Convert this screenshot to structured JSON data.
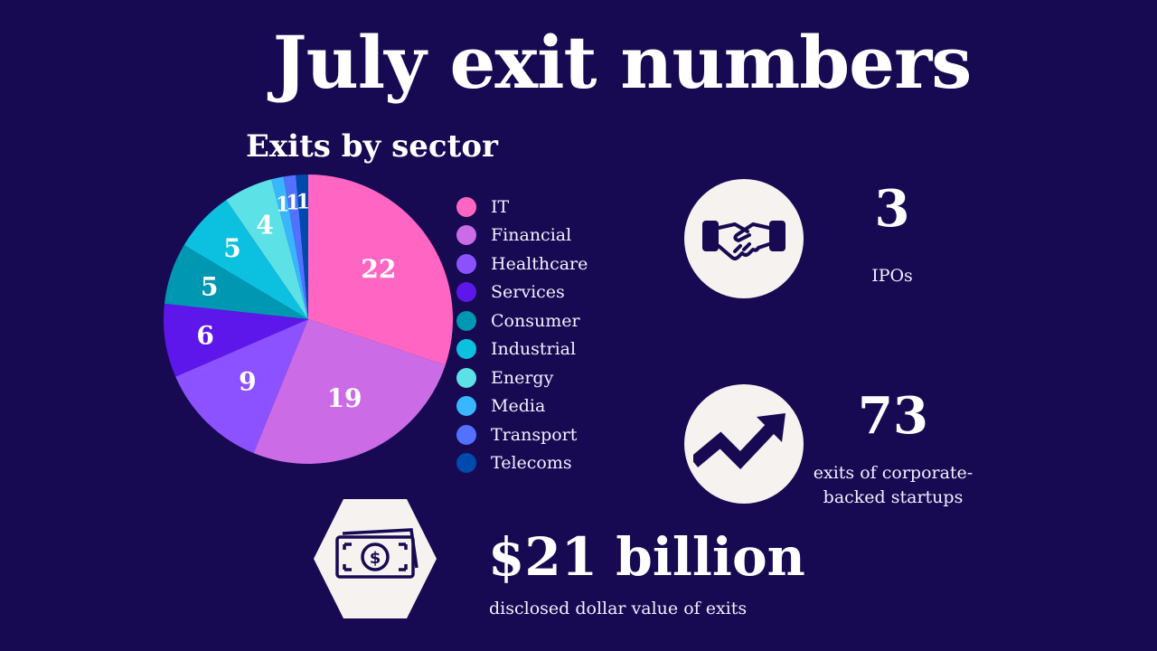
{
  "title": "July exit numbers",
  "chart_data": {
    "type": "pie",
    "title": "Exits by sector",
    "legend_position": "right",
    "slices": [
      {
        "label": "IT",
        "value": 22,
        "color": "#ff66c4"
      },
      {
        "label": "Financial",
        "value": 19,
        "color": "#cb6ce6"
      },
      {
        "label": "Healthcare",
        "value": 9,
        "color": "#8c52ff"
      },
      {
        "label": "Services",
        "value": 6,
        "color": "#5e17eb"
      },
      {
        "label": "Consumer",
        "value": 5,
        "color": "#0097b2"
      },
      {
        "label": "Industrial",
        "value": 5,
        "color": "#0cc0df"
      },
      {
        "label": "Energy",
        "value": 4,
        "color": "#5ce1e6"
      },
      {
        "label": "Media",
        "value": 1,
        "color": "#38b6ff"
      },
      {
        "label": "Transport",
        "value": 1,
        "color": "#5271ff"
      },
      {
        "label": "Telecoms",
        "value": 1,
        "color": "#004aad"
      }
    ]
  },
  "stats": {
    "ipos": {
      "value": "3",
      "label": "IPOs",
      "icon": "handshake-icon"
    },
    "corporate": {
      "value": "73",
      "label_line1": "exits of corporate-",
      "label_line2": "backed startups",
      "icon": "trend-up-arrow-icon"
    },
    "dollar": {
      "value": "$21 billion",
      "label": "disclosed dollar value of exits",
      "icon": "banknote-icon"
    }
  }
}
